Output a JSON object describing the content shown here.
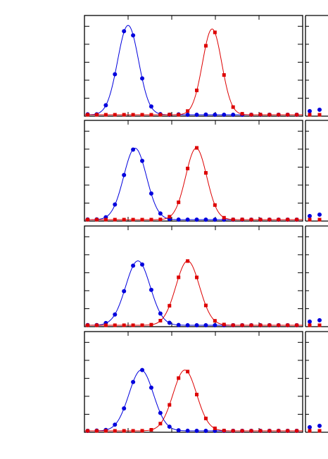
{
  "chart_data": [
    {
      "type": "line",
      "panel": 1,
      "series": [
        {
          "color": "#0000dd",
          "marker": "circle",
          "fit": {
            "center": 0.2,
            "width": 0.048,
            "amp": 1.0
          },
          "noise": [
            0.2,
            -0.3,
            0.1,
            0.0,
            0.4,
            -0.2,
            0.1,
            0.3,
            -0.1,
            0.0,
            0.2,
            -0.2,
            0.0,
            0.1,
            0.0,
            0.0,
            0.0,
            0.0,
            0.0,
            0.0,
            0.0,
            0.0,
            0.0,
            0.0
          ]
        },
        {
          "color": "#dd0000",
          "marker": "square",
          "fit": {
            "center": 0.585,
            "width": 0.044,
            "amp": 0.96
          },
          "noise": [
            0.0,
            0.0,
            0.0,
            0.0,
            0.0,
            0.0,
            0.0,
            0.0,
            0.0,
            0.1,
            -0.1,
            0.2,
            0.3,
            -0.2,
            0.1,
            0.0,
            -0.1,
            0.2,
            0.0,
            0.1,
            0.0,
            0.0,
            0.0,
            0.0
          ]
        }
      ]
    },
    {
      "type": "line",
      "panel": 2,
      "series": [
        {
          "color": "#0000dd",
          "marker": "circle",
          "fit": {
            "center": 0.232,
            "width": 0.052,
            "amp": 0.8
          },
          "noise": [
            0.1,
            0.0,
            -0.1,
            0.2,
            0.1,
            -0.2,
            0.0,
            0.2,
            0.1,
            -0.1,
            0.0,
            0.0,
            0.0,
            0.0,
            0.0,
            0.0,
            0.0,
            0.0,
            0.0,
            0.0,
            0.0,
            0.0,
            0.0,
            0.0
          ]
        },
        {
          "color": "#dd0000",
          "marker": "square",
          "fit": {
            "center": 0.512,
            "width": 0.048,
            "amp": 0.8
          },
          "noise": [
            0.0,
            0.0,
            0.0,
            0.0,
            0.0,
            0.0,
            0.0,
            0.0,
            0.0,
            0.1,
            0.0,
            -0.1,
            0.2,
            0.0,
            0.1,
            -0.1,
            0.0,
            0.1,
            0.0,
            0.0,
            0.0,
            0.0,
            0.0,
            0.0
          ]
        }
      ]
    },
    {
      "type": "line",
      "panel": 3,
      "series": [
        {
          "color": "#0000dd",
          "marker": "circle",
          "fit": {
            "center": 0.245,
            "width": 0.056,
            "amp": 0.72
          },
          "noise": [
            0.1,
            0.0,
            0.1,
            -0.1,
            0.2,
            0.0,
            0.1,
            0.0,
            -0.1,
            0.1,
            0.0,
            0.0,
            0.0,
            0.0,
            0.0,
            0.0,
            0.0,
            0.0,
            0.0,
            0.0,
            0.0,
            0.0,
            0.0,
            0.0
          ]
        },
        {
          "color": "#dd0000",
          "marker": "square",
          "fit": {
            "center": 0.473,
            "width": 0.054,
            "amp": 0.72
          },
          "noise": [
            0.0,
            0.0,
            0.0,
            0.0,
            0.0,
            0.0,
            0.0,
            0.0,
            0.1,
            0.0,
            0.1,
            -0.1,
            0.0,
            0.1,
            0.0,
            0.1,
            0.0,
            0.0,
            0.0,
            0.0,
            0.0,
            0.0,
            0.0,
            0.0
          ]
        }
      ]
    },
    {
      "type": "line",
      "panel": 4,
      "series": [
        {
          "color": "#0000dd",
          "marker": "circle",
          "fit": {
            "center": 0.26,
            "width": 0.056,
            "amp": 0.68
          },
          "noise": [
            0.0,
            0.1,
            0.0,
            0.1,
            -0.1,
            0.0,
            0.1,
            0.0,
            0.1,
            0.0,
            0.0,
            0.0,
            0.0,
            0.0,
            0.0,
            0.0,
            0.0,
            0.0,
            0.0,
            0.0,
            0.0,
            0.0,
            0.0,
            0.0
          ]
        },
        {
          "color": "#dd0000",
          "marker": "square",
          "fit": {
            "center": 0.46,
            "width": 0.054,
            "amp": 0.68
          },
          "noise": [
            0.0,
            0.0,
            0.0,
            0.0,
            0.0,
            0.0,
            0.0,
            0.0,
            0.1,
            0.0,
            0.0,
            0.1,
            -0.1,
            0.0,
            0.1,
            0.0,
            0.0,
            0.0,
            0.0,
            0.0,
            0.0,
            0.0,
            0.0,
            0.0
          ]
        }
      ]
    }
  ],
  "style": {
    "axis_color": "#000000",
    "blue": "#0000dd",
    "red": "#dd0000",
    "grid": false
  }
}
